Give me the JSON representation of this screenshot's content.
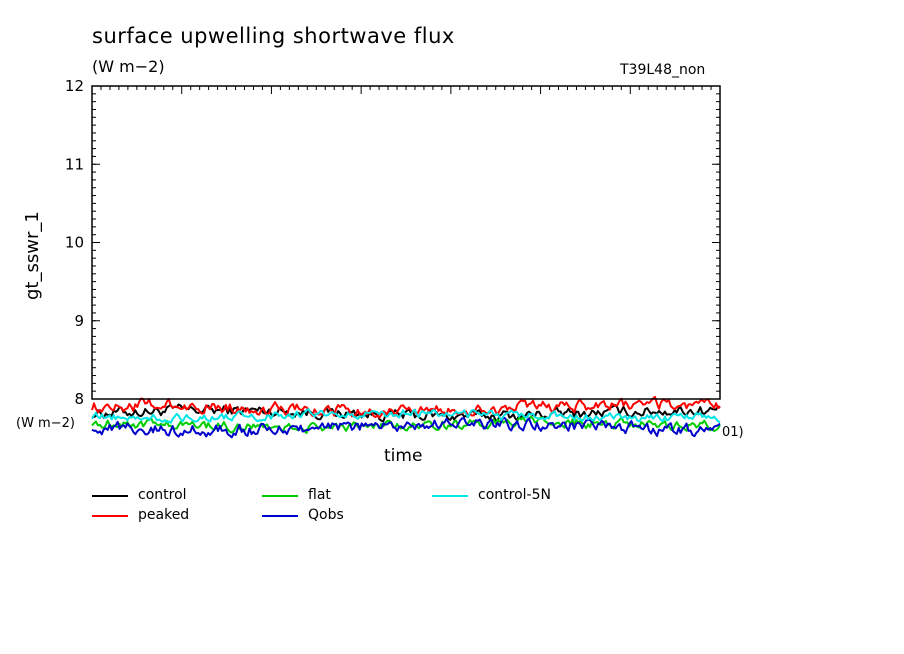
{
  "header": {
    "title": "surface upwelling shortwave flux",
    "units": "(W m−2)",
    "run_label": "T39L48_non"
  },
  "axis_extra": {
    "y_units_label": "(W m−2)",
    "x_units_fragment": "01)"
  },
  "chart_data": {
    "type": "line",
    "title": "surface upwelling shortwave flux",
    "ylabel": "gt_sswr_1",
    "xlabel": "time",
    "ylim": [
      8,
      12
    ],
    "yticks": [
      "8",
      "9",
      "10",
      "11",
      "12"
    ],
    "grid": false,
    "legend_position": "bottom",
    "series": [
      {
        "name": "control",
        "color": "#000000",
        "mean": 7.82,
        "amp": 0.09
      },
      {
        "name": "peaked",
        "color": "#ff0000",
        "mean": 7.88,
        "amp": 0.1
      },
      {
        "name": "flat",
        "color": "#00cc00",
        "mean": 7.67,
        "amp": 0.08
      },
      {
        "name": "Qobs",
        "color": "#0000cc",
        "mean": 7.64,
        "amp": 0.1
      },
      {
        "name": "control-5N",
        "color": "#00e5e5",
        "mean": 7.79,
        "amp": 0.07
      }
    ]
  }
}
